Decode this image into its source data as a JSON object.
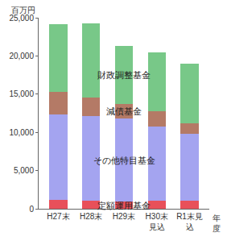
{
  "chart_data": {
    "type": "bar",
    "stacked": true,
    "grid": false,
    "categories": [
      "H27末",
      "H28末",
      "H29末",
      "H30末見込",
      "R1末見込"
    ],
    "x_label": "年度",
    "y_label": "百万円",
    "series": [
      {
        "name": "定額運用基金",
        "color": "#e8505a",
        "values": [
          1200,
          1100,
          900,
          1100,
          1100
        ]
      },
      {
        "name": "その他特目基金",
        "color": "#a4a4f0",
        "values": [
          11100,
          11000,
          10900,
          9700,
          8700
        ]
      },
      {
        "name": "減債基金",
        "color": "#b47a66",
        "values": [
          3000,
          2500,
          1900,
          2000,
          1400
        ]
      },
      {
        "name": "財政調整基金",
        "color": "#78c888",
        "values": [
          8900,
          9700,
          7600,
          7700,
          7800
        ]
      }
    ],
    "ylim": [
      0,
      25000
    ],
    "yticks": [
      0,
      {
        "value": 5000,
        "label": "5,000"
      },
      {
        "value": 10000,
        "label": "10,000"
      },
      {
        "value": 15000,
        "label": "15,000"
      },
      {
        "value": 20000,
        "label": "20,000"
      },
      {
        "value": 25000,
        "label": "25,000"
      }
    ]
  }
}
